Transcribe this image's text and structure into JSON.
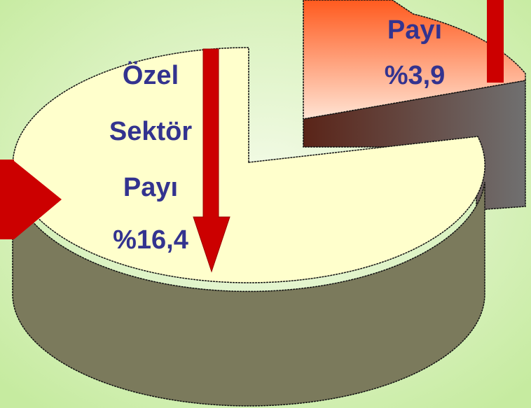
{
  "chart_data": {
    "type": "pie",
    "categories": [
      "Özel Sektör Payı",
      "Payı"
    ],
    "values": [
      16.4,
      3.9
    ],
    "value_labels": [
      "%16,4",
      "%3,9"
    ]
  }
}
